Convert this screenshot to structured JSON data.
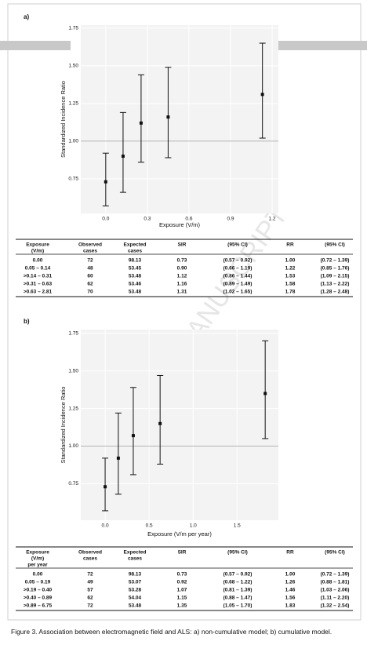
{
  "chart_data": [
    {
      "type": "scatter",
      "panel": "a)",
      "ylabel": "Standardized Incidence Ratio",
      "xlabel": "Exposure (V/m)",
      "x": [
        0,
        0.125,
        0.255,
        0.45,
        1.13
      ],
      "values": [
        0.73,
        0.9,
        1.12,
        1.16,
        1.31
      ],
      "lower": [
        0.57,
        0.66,
        0.86,
        0.89,
        1.02
      ],
      "upper": [
        0.92,
        1.19,
        1.44,
        1.49,
        1.65
      ],
      "xlim": [
        -0.18,
        1.245
      ],
      "ylim": [
        0.52,
        1.77
      ],
      "xticks": [
        {
          "value": 0,
          "label": "0.0"
        },
        0.3,
        0.6,
        0.9,
        1.2
      ],
      "yticks": [
        {
          "value": 0.75,
          "label": "0.75"
        },
        {
          "value": 1,
          "label": "1.00"
        },
        {
          "value": 1.25,
          "label": "1.25"
        },
        {
          "value": 1.5,
          "label": "1.50"
        },
        {
          "value": 1.75,
          "label": "1.75"
        }
      ],
      "reference_line": 1,
      "color": "#111111"
    },
    {
      "type": "scatter",
      "panel": "b)",
      "ylabel": "Standardized Incidence Ratio",
      "xlabel": "Exposure (V/m per year)",
      "x": [
        0,
        0.15,
        0.32,
        0.625,
        1.82
      ],
      "values": [
        0.73,
        0.92,
        1.07,
        1.15,
        1.35
      ],
      "lower": [
        0.57,
        0.68,
        0.81,
        0.88,
        1.05
      ],
      "upper": [
        0.92,
        1.22,
        1.39,
        1.47,
        1.7
      ],
      "xlim": [
        -0.277,
        1.97
      ],
      "ylim": [
        0.507,
        1.775
      ],
      "xticks": [
        {
          "value": 0,
          "label": "0.0"
        },
        0.5,
        {
          "value": 1,
          "label": "1.0"
        },
        1.5
      ],
      "yticks": [
        {
          "value": 0.75,
          "label": "0.75"
        },
        {
          "value": 1,
          "label": "1.00"
        },
        {
          "value": 1.25,
          "label": "1.25"
        },
        {
          "value": 1.5,
          "label": "1.50"
        },
        {
          "value": 1.75,
          "label": "1.75"
        }
      ],
      "reference_line": 1,
      "color": "#111111"
    }
  ],
  "tables": [
    {
      "header": [
        [
          "Exposure",
          "(V/m)"
        ],
        [
          "Observed",
          "cases"
        ],
        [
          "Expected",
          "cases"
        ],
        [
          "SIR"
        ],
        [
          "(95% CI)"
        ],
        [
          "RR"
        ],
        [
          "(95% CI)"
        ]
      ],
      "rows": [
        [
          "0.00",
          "72",
          "98.13",
          "0.73",
          "(0.57 – 0.92)",
          "1.00",
          "(0.72 – 1.39)"
        ],
        [
          "0.05 – 0.14",
          "48",
          "53.45",
          "0.90",
          "(0.66 – 1.19)",
          "1.22",
          "(0.85 – 1.76)"
        ],
        [
          ">0.14 – 0.31",
          "60",
          "53.48",
          "1.12",
          "(0.86 – 1.44)",
          "1.53",
          "(1.09 – 2.15)"
        ],
        [
          ">0.31 – 0.63",
          "62",
          "53.46",
          "1.16",
          "(0.89 – 1.49)",
          "1.58",
          "(1.13 – 2.22)"
        ],
        [
          ">0.63 – 2.81",
          "70",
          "53.48",
          "1.31",
          "(1.02 – 1.65)",
          "1.78",
          "(1.28 – 2.48)"
        ]
      ]
    },
    {
      "header": [
        [
          "Exposure",
          "(V/m)",
          "per year"
        ],
        [
          "Observed",
          "cases"
        ],
        [
          "Expected",
          "cases"
        ],
        [
          "SIR"
        ],
        [
          "(95% CI)"
        ],
        [
          "RR"
        ],
        [
          "(95% CI)"
        ]
      ],
      "rows": [
        [
          "0.00",
          "72",
          "98.13",
          "0.73",
          "(0.57 – 0.92)",
          "1.00",
          "(0.72 – 1.39)"
        ],
        [
          "0.05 – 0.19",
          "49",
          "53.07",
          "0.92",
          "(0.68 – 1.22)",
          "1.26",
          "(0.88 – 1.81)"
        ],
        [
          ">0.19 – 0.40",
          "57",
          "53.28",
          "1.07",
          "(0.81 – 1.39)",
          "1.46",
          "(1.03 – 2.06)"
        ],
        [
          ">0.40 – 0.89",
          "62",
          "54.04",
          "1.15",
          "(0.88 – 1.47)",
          "1.56",
          "(1.11 – 2.20)"
        ],
        [
          ">0.89 – 6.75",
          "72",
          "53.48",
          "1.35",
          "(1.05 – 1.70)",
          "1.83",
          "(1.32 – 2.54)"
        ]
      ]
    }
  ],
  "watermark": "ACCEPTED MANUSCRIPT",
  "caption": "Figure 3. Association between electromagnetic field and ALS: a) non-cumulative model; b) cumulative model."
}
